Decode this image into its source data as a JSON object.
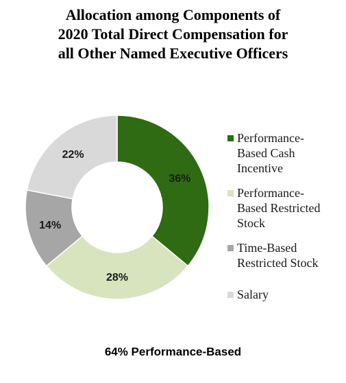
{
  "chart_data": {
    "type": "pie",
    "title_lines": [
      "Allocation among Components of",
      "2020 Total Direct Compensation for",
      "all Other Named Executive Officers"
    ],
    "slices": [
      {
        "label": "Performance-Based Cash Incentive",
        "legend_lines": [
          "Performance-",
          "Based Cash",
          "Incentive"
        ],
        "value": 36,
        "display": "36%",
        "color": "#2e6b12"
      },
      {
        "label": "Performance-Based Restricted Stock",
        "legend_lines": [
          "Performance-",
          "Based Restricted",
          "Stock"
        ],
        "value": 28,
        "display": "28%",
        "color": "#d7e4bd"
      },
      {
        "label": "Time-Based Restricted Stock",
        "legend_lines": [
          "Time-Based",
          "Restricted Stock"
        ],
        "value": 14,
        "display": "14%",
        "color": "#a6a6a6"
      },
      {
        "label": "Salary",
        "legend_lines": [
          "Salary"
        ],
        "value": 22,
        "display": "22%",
        "color": "#d9d9d9"
      }
    ],
    "donut": true,
    "start_angle_deg": 0,
    "direction": "clockwise",
    "legend_position": "right",
    "footer": "64% Performance-Based"
  }
}
